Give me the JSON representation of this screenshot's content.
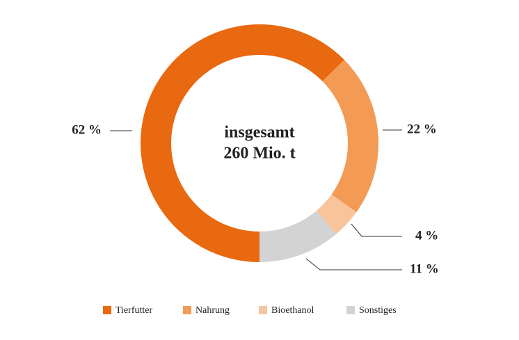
{
  "chart_data": {
    "type": "donut",
    "center_text": [
      "insgesamt",
      "260 Mio. t"
    ],
    "categories": [
      "Tierfutter",
      "Nahrung",
      "Bioethanol",
      "Sonstiges"
    ],
    "values": [
      62,
      22,
      4,
      11
    ],
    "value_labels": [
      "62 %",
      "22 %",
      "4 %",
      "11 %"
    ],
    "colors": [
      "#e8690f",
      "#f39a55",
      "#f8c49c",
      "#d3d3d3"
    ],
    "legend": "bottom"
  }
}
